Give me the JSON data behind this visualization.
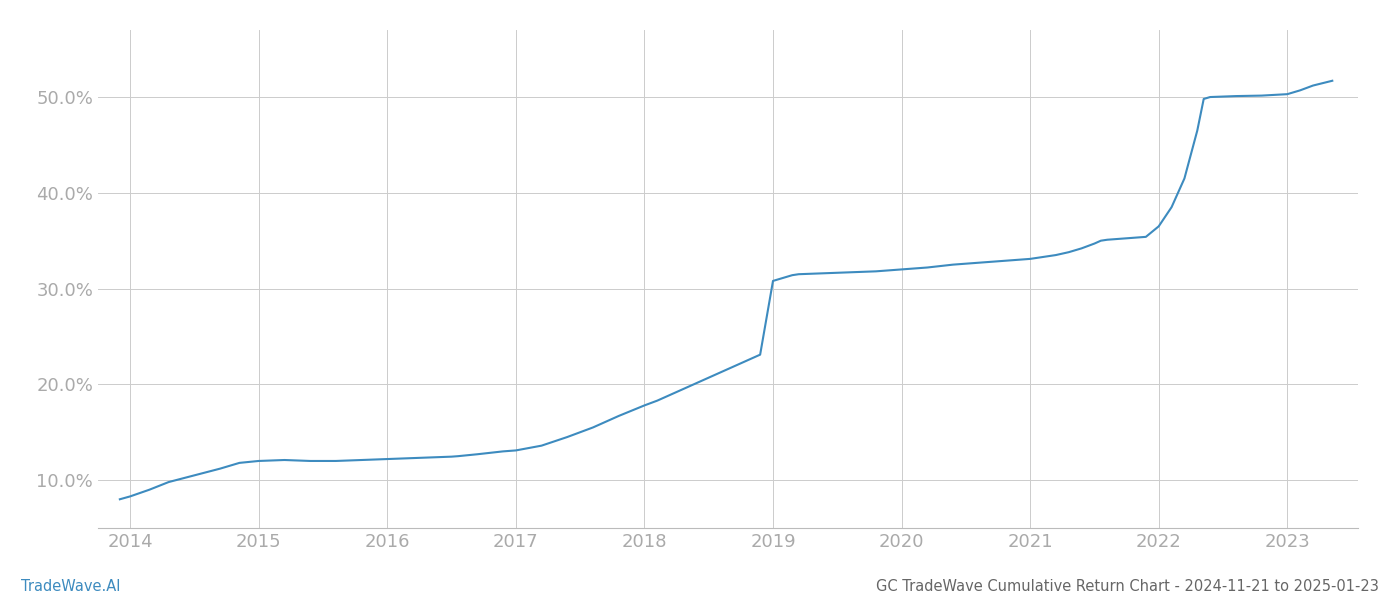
{
  "title": "",
  "footer_left": "TradeWave.AI",
  "footer_right": "GC TradeWave Cumulative Return Chart - 2024-11-21 to 2025-01-23",
  "line_color": "#3d8bbf",
  "background_color": "#ffffff",
  "grid_color": "#cccccc",
  "x_years": [
    2014,
    2015,
    2016,
    2017,
    2018,
    2019,
    2020,
    2021,
    2022,
    2023
  ],
  "x_values": [
    2013.92,
    2014.0,
    2014.15,
    2014.3,
    2014.5,
    2014.7,
    2014.85,
    2015.0,
    2015.2,
    2015.4,
    2015.6,
    2015.8,
    2016.0,
    2016.2,
    2016.4,
    2016.5,
    2016.55,
    2016.7,
    2016.9,
    2017.0,
    2017.2,
    2017.4,
    2017.6,
    2017.8,
    2018.0,
    2018.1,
    2018.2,
    2018.3,
    2018.4,
    2018.5,
    2018.6,
    2018.7,
    2018.8,
    2018.9,
    2019.0,
    2019.05,
    2019.1,
    2019.15,
    2019.2,
    2019.4,
    2019.6,
    2019.8,
    2020.0,
    2020.2,
    2020.4,
    2020.6,
    2020.8,
    2021.0,
    2021.1,
    2021.2,
    2021.3,
    2021.4,
    2021.5,
    2021.55,
    2021.6,
    2021.7,
    2021.8,
    2021.9,
    2022.0,
    2022.1,
    2022.2,
    2022.3,
    2022.35,
    2022.4,
    2022.6,
    2022.8,
    2023.0,
    2023.1,
    2023.2,
    2023.35
  ],
  "y_values": [
    8.0,
    8.3,
    9.0,
    9.8,
    10.5,
    11.2,
    11.8,
    12.0,
    12.1,
    12.0,
    12.0,
    12.1,
    12.2,
    12.3,
    12.4,
    12.45,
    12.5,
    12.7,
    13.0,
    13.1,
    13.6,
    14.5,
    15.5,
    16.7,
    17.8,
    18.3,
    18.9,
    19.5,
    20.1,
    20.7,
    21.3,
    21.9,
    22.5,
    23.1,
    30.8,
    31.0,
    31.2,
    31.4,
    31.5,
    31.6,
    31.7,
    31.8,
    32.0,
    32.2,
    32.5,
    32.7,
    32.9,
    33.1,
    33.3,
    33.5,
    33.8,
    34.2,
    34.7,
    35.0,
    35.1,
    35.2,
    35.3,
    35.4,
    36.5,
    38.5,
    41.5,
    46.5,
    49.8,
    50.0,
    50.1,
    50.15,
    50.3,
    50.7,
    51.2,
    51.7
  ],
  "ylim": [
    5.0,
    57.0
  ],
  "yticks": [
    10.0,
    20.0,
    30.0,
    40.0,
    50.0
  ],
  "xlim": [
    2013.75,
    2023.55
  ],
  "line_width": 1.5,
  "tick_label_color": "#aaaaaa",
  "footer_color_left": "#3d8bbf",
  "footer_color_right": "#666666",
  "footer_fontsize": 10.5,
  "tick_fontsize": 13
}
